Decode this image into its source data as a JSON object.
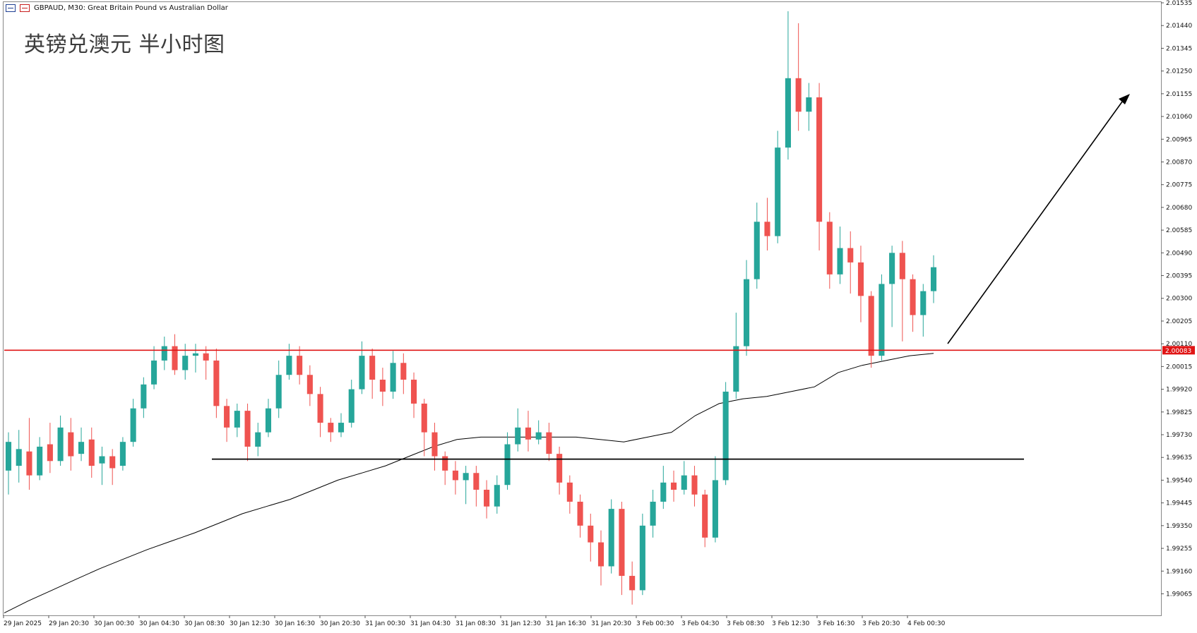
{
  "header": {
    "symbol_line": "GBPAUD, M30:  Great Britain Pound vs Australian Dollar"
  },
  "title": "英镑兑澳元 半小时图",
  "colors": {
    "bull": "#26a69a",
    "bear": "#ef5350",
    "resistance": "#e01515",
    "support": "#000000",
    "ma": "#000000",
    "price_tag_bg": "#e01515",
    "price_tag_text": "#ffffff"
  },
  "chart_data": {
    "type": "candlestick",
    "timeframe": "M30",
    "symbol": "GBPAUD",
    "y_axis": {
      "ylim": [
        1.98975,
        2.01535
      ],
      "ticks": [
        "2.01535",
        "2.01440",
        "2.01345",
        "2.01250",
        "2.01155",
        "2.01060",
        "2.00965",
        "2.00870",
        "2.00775",
        "2.00680",
        "2.00585",
        "2.00490",
        "2.00395",
        "2.00300",
        "2.00205",
        "2.00110",
        "2.00015",
        "1.99920",
        "1.99825",
        "1.99730",
        "1.99635",
        "1.99540",
        "1.99445",
        "1.99350",
        "1.99255",
        "1.99160",
        "1.99065"
      ]
    },
    "x_axis": {
      "labels": [
        "29 Jan 2025",
        "29 Jan 20:30",
        "30 Jan 00:30",
        "30 Jan 04:30",
        "30 Jan 08:30",
        "30 Jan 12:30",
        "30 Jan 16:30",
        "30 Jan 20:30",
        "31 Jan 00:30",
        "31 Jan 04:30",
        "31 Jan 08:30",
        "31 Jan 12:30",
        "31 Jan 16:30",
        "31 Jan 20:30",
        "3 Feb 00:30",
        "3 Feb 04:30",
        "3 Feb 08:30",
        "3 Feb 12:30",
        "3 Feb 16:30",
        "3 Feb 20:30",
        "4 Feb 00:30"
      ]
    },
    "current_price": "2.00083",
    "resistance_level": 2.00083,
    "support_level": 1.99628,
    "moving_average": [
      1.98985,
      1.99035,
      1.9908,
      1.99125,
      1.9917,
      1.9921,
      1.9925,
      1.99285,
      1.9932,
      1.9936,
      1.994,
      1.9943,
      1.9946,
      1.995,
      1.9954,
      1.9957,
      1.996,
      1.9964,
      1.9968,
      1.9971,
      1.9972,
      1.9972,
      1.9972,
      1.9972,
      1.9972,
      1.9971,
      1.997,
      1.9972,
      1.9974,
      1.9981,
      1.9986,
      1.9988,
      1.9989,
      1.9991,
      1.9993,
      1.9999,
      2.0002,
      2.0004,
      2.0006,
      2.0007
    ],
    "candles": [
      [
        1.9958,
        1.997,
        1.9948,
        1.9974
      ],
      [
        1.996,
        1.9967,
        1.9953,
        1.9975
      ],
      [
        1.9966,
        1.9956,
        1.995,
        1.998
      ],
      [
        1.9956,
        1.9968,
        1.9954,
        1.9972
      ],
      [
        1.9969,
        1.9962,
        1.9957,
        1.9978
      ],
      [
        1.9962,
        1.9976,
        1.996,
        1.9981
      ],
      [
        1.9974,
        1.9964,
        1.9958,
        1.998
      ],
      [
        1.9965,
        1.997,
        1.9962,
        1.9976
      ],
      [
        1.9971,
        1.996,
        1.9955,
        1.9976
      ],
      [
        1.9961,
        1.9964,
        1.9952,
        1.9968
      ],
      [
        1.9964,
        1.9959,
        1.9952,
        1.9967
      ],
      [
        1.996,
        1.997,
        1.9958,
        1.9972
      ],
      [
        1.997,
        1.9984,
        1.9968,
        1.9988
      ],
      [
        1.9984,
        1.9994,
        1.998,
        1.9997
      ],
      [
        1.9994,
        2.0004,
        1.9992,
        2.001
      ],
      [
        2.0004,
        2.001,
        2.0,
        2.0014
      ],
      [
        2.001,
        2.0,
        1.9998,
        2.0015
      ],
      [
        2.0,
        2.0006,
        1.9996,
        2.0011
      ],
      [
        2.0006,
        2.0007,
        1.9999,
        2.0011
      ],
      [
        2.0007,
        2.0004,
        1.9996,
        2.001
      ],
      [
        2.0004,
        1.9985,
        1.998,
        2.0009
      ],
      [
        1.9985,
        1.9976,
        1.997,
        1.9988
      ],
      [
        1.9976,
        1.9983,
        1.9972,
        1.9986
      ],
      [
        1.9983,
        1.9968,
        1.9962,
        1.9986
      ],
      [
        1.9968,
        1.9974,
        1.9964,
        1.9978
      ],
      [
        1.9974,
        1.9984,
        1.9972,
        1.9988
      ],
      [
        1.9984,
        1.9998,
        1.998,
        2.0004
      ],
      [
        1.9998,
        2.0006,
        1.9996,
        2.0011
      ],
      [
        2.0006,
        1.9998,
        1.9994,
        2.001
      ],
      [
        1.9998,
        1.999,
        1.9985,
        2.0002
      ],
      [
        1.999,
        1.9978,
        1.9972,
        1.9993
      ],
      [
        1.9978,
        1.9974,
        1.997,
        1.998
      ],
      [
        1.9974,
        1.9978,
        1.9972,
        1.9982
      ],
      [
        1.9978,
        1.9992,
        1.9976,
        1.9996
      ],
      [
        1.9992,
        2.0006,
        1.999,
        2.0012
      ],
      [
        2.0006,
        1.9996,
        1.9988,
        2.0009
      ],
      [
        1.9996,
        1.9991,
        1.9985,
        2.0001
      ],
      [
        1.9991,
        2.0003,
        1.9988,
        2.0008
      ],
      [
        2.0003,
        1.9996,
        1.999,
        2.0007
      ],
      [
        1.9996,
        1.9986,
        1.998,
        1.9999
      ],
      [
        1.9986,
        1.9974,
        1.9964,
        1.9988
      ],
      [
        1.9974,
        1.9964,
        1.9958,
        1.9978
      ],
      [
        1.9964,
        1.9958,
        1.9952,
        1.9966
      ],
      [
        1.9958,
        1.9954,
        1.9948,
        1.9962
      ],
      [
        1.9954,
        1.9957,
        1.9944,
        1.996
      ],
      [
        1.9957,
        1.995,
        1.9943,
        1.996
      ],
      [
        1.995,
        1.9943,
        1.9938,
        1.9954
      ],
      [
        1.9943,
        1.9952,
        1.994,
        1.9956
      ],
      [
        1.9952,
        1.9969,
        1.995,
        1.9974
      ],
      [
        1.9969,
        1.9976,
        1.9966,
        1.9984
      ],
      [
        1.9976,
        1.9971,
        1.9966,
        1.9983
      ],
      [
        1.9971,
        1.9974,
        1.9969,
        1.9979
      ],
      [
        1.9974,
        1.9965,
        1.9962,
        1.9978
      ],
      [
        1.9965,
        1.9953,
        1.9948,
        1.9968
      ],
      [
        1.9953,
        1.9945,
        1.994,
        1.9956
      ],
      [
        1.9945,
        1.9935,
        1.993,
        1.9948
      ],
      [
        1.9935,
        1.9928,
        1.992,
        1.994
      ],
      [
        1.9928,
        1.9918,
        1.991,
        1.9933
      ],
      [
        1.9918,
        1.9942,
        1.9915,
        1.9946
      ],
      [
        1.9942,
        1.9914,
        1.9906,
        1.9945
      ],
      [
        1.9914,
        1.9908,
        1.9902,
        1.992
      ],
      [
        1.9908,
        1.9935,
        1.9906,
        1.994
      ],
      [
        1.9935,
        1.9945,
        1.993,
        1.995
      ],
      [
        1.9945,
        1.9953,
        1.9942,
        1.996
      ],
      [
        1.9953,
        1.995,
        1.9945,
        1.9958
      ],
      [
        1.995,
        1.9956,
        1.9948,
        1.9962
      ],
      [
        1.9956,
        1.9948,
        1.9943,
        1.996
      ],
      [
        1.9948,
        1.993,
        1.9926,
        1.995
      ],
      [
        1.993,
        1.9954,
        1.9928,
        1.9964
      ],
      [
        1.9954,
        1.9991,
        1.9952,
        1.9995
      ],
      [
        1.9991,
        2.001,
        1.9988,
        2.0024
      ],
      [
        2.001,
        2.0038,
        2.0006,
        2.0046
      ],
      [
        2.0038,
        2.0062,
        2.0034,
        2.007
      ],
      [
        2.0062,
        2.0056,
        2.005,
        2.0072
      ],
      [
        2.0056,
        2.0093,
        2.0053,
        2.01
      ],
      [
        2.0093,
        2.0122,
        2.0088,
        2.015
      ],
      [
        2.0122,
        2.0108,
        2.01,
        2.0145
      ],
      [
        2.0108,
        2.0114,
        2.01,
        2.012
      ],
      [
        2.0114,
        2.0062,
        2.005,
        2.012
      ],
      [
        2.0062,
        2.004,
        2.0034,
        2.0066
      ],
      [
        2.004,
        2.0051,
        2.0036,
        2.006
      ],
      [
        2.0051,
        2.0045,
        2.0032,
        2.0058
      ],
      [
        2.0045,
        2.0031,
        2.002,
        2.0052
      ],
      [
        2.0031,
        2.0006,
        2.0001,
        2.0033
      ],
      [
        2.0006,
        2.0036,
        2.0004,
        2.004
      ],
      [
        2.0036,
        2.0049,
        2.0018,
        2.0052
      ],
      [
        2.0049,
        2.0038,
        2.0012,
        2.0054
      ],
      [
        2.0038,
        2.0023,
        2.0016,
        2.004
      ],
      [
        2.0023,
        2.0033,
        2.0014,
        2.0036
      ],
      [
        2.0033,
        2.0043,
        2.0028,
        2.0048
      ]
    ]
  }
}
